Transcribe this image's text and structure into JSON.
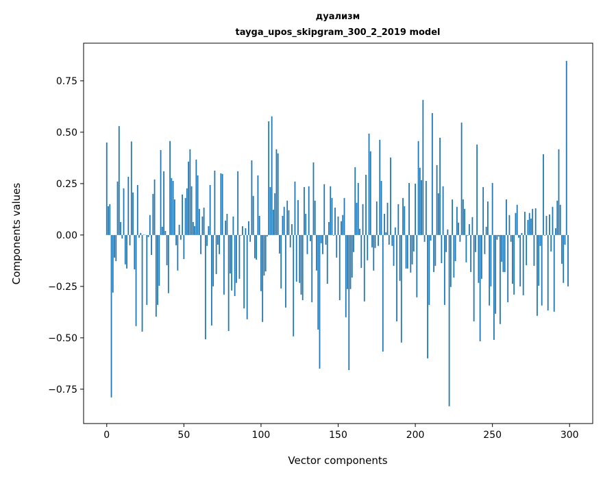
{
  "chart_data": {
    "type": "bar",
    "title": "дуализм",
    "subtitle": "tayga_upos_skipgram_300_2_2019 model",
    "xlabel": "Vector components",
    "ylabel": "Components values",
    "xlim": [
      -15,
      315
    ],
    "ylim": [
      -0.917,
      0.933
    ],
    "xticks": [
      0,
      50,
      100,
      150,
      200,
      250,
      300
    ],
    "xtick_labels": [
      "0",
      "50",
      "100",
      "150",
      "200",
      "250",
      "300"
    ],
    "yticks": [
      -0.75,
      -0.5,
      -0.25,
      0,
      0.25,
      0.5,
      0.75
    ],
    "ytick_labels": [
      "−0.75",
      "−0.50",
      "−0.25",
      "0.00",
      "0.25",
      "0.50",
      "0.75"
    ],
    "grid": false,
    "color": "#1f77b4",
    "values": [
      0.45,
      0.14,
      0.15,
      -0.79,
      -0.28,
      -0.11,
      -0.127,
      0.26,
      0.53,
      0.063,
      -0.017,
      0.227,
      -0.143,
      -0.163,
      0.283,
      -0.05,
      0.455,
      0.207,
      -0.167,
      -0.443,
      0.243,
      -0.013,
      0.01,
      -0.47,
      0.002,
      0.001,
      -0.34,
      -0.01,
      0.097,
      -0.097,
      0.2,
      0.27,
      -0.397,
      -0.34,
      -0.247,
      0.413,
      0.04,
      0.31,
      0.02,
      -0.147,
      -0.283,
      0.457,
      0.277,
      0.263,
      0.173,
      -0.05,
      -0.173,
      0.05,
      -0.023,
      0.197,
      -0.117,
      0.18,
      0.227,
      0.357,
      0.417,
      0.237,
      0.063,
      0.043,
      0.367,
      0.29,
      0.127,
      -0.093,
      0.09,
      0.133,
      -0.507,
      -0.053,
      0.043,
      0.243,
      -0.44,
      -0.25,
      0.313,
      -0.19,
      -0.047,
      -0.093,
      0.3,
      0.297,
      -0.29,
      0.07,
      0.103,
      -0.467,
      -0.187,
      -0.27,
      0.09,
      -0.297,
      -0.233,
      0.31,
      -0.213,
      -0.003,
      0.043,
      -0.357,
      0.033,
      -0.41,
      0.067,
      -0.033,
      0.363,
      0.19,
      -0.113,
      -0.12,
      0.29,
      0.093,
      -0.273,
      -0.423,
      -0.197,
      -0.177,
      -0.007,
      0.553,
      0.233,
      0.577,
      0.123,
      0.203,
      0.417,
      0.397,
      -0.09,
      -0.26,
      0.093,
      0.137,
      -0.353,
      0.167,
      0.12,
      -0.06,
      0.053,
      -0.493,
      0.26,
      -0.227,
      0.17,
      -0.233,
      -0.29,
      -0.317,
      0.233,
      0.103,
      -0.093,
      0.237,
      -0.03,
      -0.327,
      0.353,
      0.167,
      -0.173,
      -0.46,
      -0.65,
      -0.04,
      -0.093,
      0.247,
      -0.047,
      -0.237,
      0.063,
      0.237,
      0.18,
      -0.003,
      0.133,
      -0.11,
      0.09,
      -0.317,
      0.067,
      0.097,
      0.18,
      -0.4,
      -0.263,
      -0.657,
      -0.263,
      -0.207,
      -0.083,
      0.33,
      0.157,
      0.253,
      0.03,
      -0.16,
      0.15,
      -0.323,
      0.293,
      -0.123,
      0.493,
      0.407,
      -0.06,
      -0.173,
      -0.063,
      0.163,
      -0.053,
      0.463,
      0.263,
      -0.567,
      0.103,
      0.013,
      0.157,
      -0.047,
      0.377,
      -0.053,
      -0.15,
      0.037,
      -0.42,
      0.15,
      -0.223,
      -0.523,
      0.18,
      0.14,
      -0.163,
      -0.163,
      0.253,
      -0.183,
      -0.143,
      -0.08,
      0.25,
      -0.303,
      0.457,
      0.327,
      0.267,
      0.657,
      -0.033,
      0.263,
      -0.6,
      -0.34,
      -0.027,
      0.593,
      -0.18,
      -0.15,
      0.34,
      0.203,
      0.473,
      -0.137,
      0.237,
      -0.34,
      -0.083,
      0.027,
      -0.833,
      -0.253,
      0.173,
      -0.207,
      -0.127,
      0.137,
      0.06,
      -0.033,
      0.547,
      0.173,
      0.127,
      -0.133,
      -0.003,
      0.053,
      -0.18,
      0.087,
      -0.42,
      -0.083,
      0.44,
      -0.233,
      -0.517,
      -0.213,
      0.233,
      -0.093,
      0.04,
      0.163,
      -0.343,
      -0.25,
      0.253,
      -0.51,
      -0.383,
      -0.023,
      -0.007,
      -0.433,
      -0.13,
      -0.18,
      -0.18,
      0.173,
      -0.327,
      0.097,
      -0.033,
      -0.237,
      -0.29,
      0.107,
      0.147,
      -0.013,
      -0.25,
      0.01,
      -0.293,
      0.113,
      -0.147,
      0.073,
      0.107,
      0.08,
      0.127,
      -0.15,
      0.13,
      -0.393,
      -0.247,
      -0.053,
      -0.343,
      0.393,
      -0.003,
      0.093,
      -0.367,
      0.1,
      -0.08,
      0.137,
      -0.373,
      0.033,
      0.167,
      0.417,
      0.147,
      -0.14,
      -0.233,
      -0.047,
      0.847,
      -0.25
    ]
  }
}
